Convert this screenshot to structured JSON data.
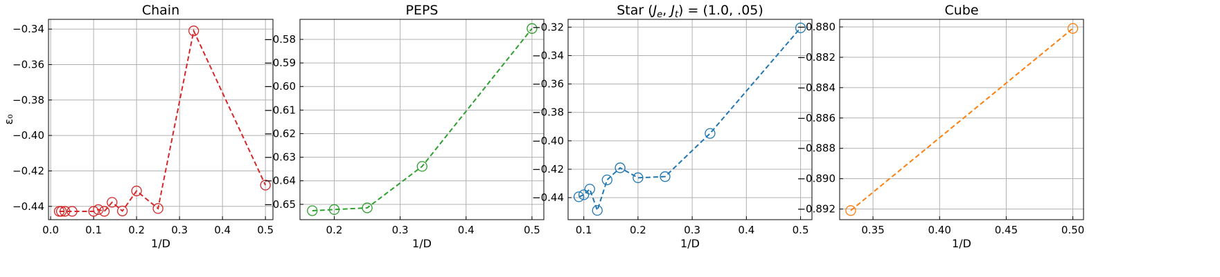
{
  "chart_data": [
    {
      "type": "line",
      "title": "Chain",
      "xlabel": "1/D",
      "ylabel": "ε₀",
      "xlim": [
        -0.005,
        0.5175
      ],
      "ylim": [
        -0.4475,
        -0.3345
      ],
      "xticks": [
        0.0,
        0.1,
        0.2,
        0.3,
        0.4,
        0.5
      ],
      "xtick_labels": [
        "0.0",
        "0.1",
        "0.2",
        "0.3",
        "0.4",
        "0.5"
      ],
      "yticks": [
        -0.44,
        -0.42,
        -0.4,
        -0.38,
        -0.36,
        -0.34
      ],
      "ytick_labels": [
        "−0.44",
        "−0.42",
        "−0.40",
        "−0.38",
        "−0.36",
        "−0.34"
      ],
      "grid": true,
      "series": [
        {
          "color": "#d62728",
          "linestyle": "dashed",
          "marker": "open-circle",
          "x": [
            0.02,
            0.025,
            0.0333,
            0.05,
            0.1,
            0.111,
            0.125,
            0.143,
            0.167,
            0.2,
            0.25,
            0.333,
            0.5
          ],
          "y": [
            -0.4428,
            -0.4428,
            -0.4428,
            -0.4428,
            -0.4428,
            -0.4418,
            -0.4428,
            -0.4377,
            -0.4426,
            -0.4313,
            -0.4412,
            -0.341,
            -0.428
          ]
        }
      ]
    },
    {
      "type": "line",
      "title": "PEPS",
      "xlabel": "1/D",
      "ylabel": "",
      "xlim": [
        0.148,
        0.518
      ],
      "ylim": [
        -0.6565,
        -0.5715
      ],
      "xticks": [
        0.2,
        0.3,
        0.4,
        0.5
      ],
      "xtick_labels": [
        "0.2",
        "0.3",
        "0.4",
        "0.5"
      ],
      "yticks": [
        -0.65,
        -0.64,
        -0.63,
        -0.62,
        -0.61,
        -0.6,
        -0.59,
        -0.58
      ],
      "ytick_labels": [
        "−0.65",
        "−0.64",
        "−0.63",
        "−0.62",
        "−0.61",
        "−0.60",
        "−0.59",
        "−0.58"
      ],
      "grid": true,
      "series": [
        {
          "color": "#2ca02c",
          "linestyle": "dashed",
          "marker": "open-circle",
          "x": [
            0.1667,
            0.2,
            0.25,
            0.3333,
            0.5
          ],
          "y": [
            -0.6527,
            -0.6522,
            -0.6515,
            -0.6339,
            -0.5754
          ]
        }
      ]
    },
    {
      "type": "line",
      "title": "Star (J_e, J_t) = (1.0, .05)",
      "title_parts": {
        "prefix": "Star (",
        "je_main": "J",
        "je_sub": "e",
        "comma": ", ",
        "jt_main": "J",
        "jt_sub": "t",
        "suffix": ") = (1.0, .05)"
      },
      "xlabel": "1/D",
      "ylabel": "",
      "xlim": [
        0.071,
        0.521
      ],
      "ylim": [
        -0.4555,
        -0.3145
      ],
      "xticks": [
        0.1,
        0.2,
        0.3,
        0.4,
        0.5
      ],
      "xtick_labels": [
        "0.1",
        "0.2",
        "0.3",
        "0.4",
        "0.5"
      ],
      "yticks": [
        -0.44,
        -0.42,
        -0.4,
        -0.38,
        -0.36,
        -0.34,
        -0.32
      ],
      "ytick_labels": [
        "−0.44",
        "−0.42",
        "−0.40",
        "−0.38",
        "−0.36",
        "−0.34",
        "−0.32"
      ],
      "grid": true,
      "series": [
        {
          "color": "#1f77b4",
          "linestyle": "dashed",
          "marker": "open-circle",
          "x": [
            0.0909,
            0.1,
            0.111,
            0.125,
            0.143,
            0.167,
            0.2,
            0.25,
            0.333,
            0.5
          ],
          "y": [
            -0.4394,
            -0.438,
            -0.434,
            -0.449,
            -0.4275,
            -0.419,
            -0.426,
            -0.4252,
            -0.3948,
            -0.3205
          ]
        }
      ]
    },
    {
      "type": "line",
      "title": "Cube",
      "xlabel": "1/D",
      "ylabel": "",
      "xlim": [
        0.325,
        0.508
      ],
      "ylim": [
        -0.8927,
        -0.8795
      ],
      "xticks": [
        0.35,
        0.4,
        0.45,
        0.5
      ],
      "xtick_labels": [
        "0.35",
        "0.40",
        "0.45",
        "0.50"
      ],
      "yticks": [
        -0.892,
        -0.89,
        -0.888,
        -0.886,
        -0.884,
        -0.882,
        -0.88
      ],
      "ytick_labels": [
        "−0.892",
        "−0.890",
        "−0.888",
        "−0.886",
        "−0.884",
        "−0.882",
        "−0.880"
      ],
      "grid": true,
      "series": [
        {
          "color": "#ff7f0e",
          "linestyle": "dashed",
          "marker": "open-circle",
          "x": [
            0.3333,
            0.5
          ],
          "y": [
            -0.8921,
            -0.8801
          ]
        }
      ]
    }
  ]
}
